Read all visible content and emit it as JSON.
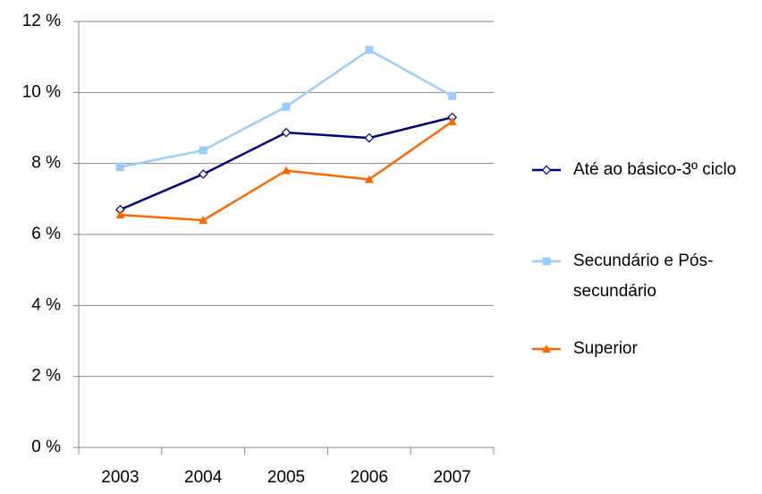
{
  "chart_data": {
    "type": "line",
    "categories": [
      "2003",
      "2004",
      "2005",
      "2006",
      "2007"
    ],
    "series": [
      {
        "name": "Até ao básico-3º ciclo",
        "color": "#000080",
        "marker": "diamond",
        "values": [
          6.7,
          7.7,
          8.87,
          8.72,
          9.3
        ]
      },
      {
        "name": "Secundário e Pós-secundário",
        "color": "#99ccff",
        "marker": "square",
        "values": [
          7.9,
          8.37,
          9.6,
          11.2,
          9.9
        ]
      },
      {
        "name": "Superior",
        "color": "#ff6600",
        "marker": "triangle",
        "values": [
          6.55,
          6.4,
          7.8,
          7.55,
          9.18
        ]
      }
    ],
    "ylim": [
      0,
      12
    ],
    "yticks": [
      {
        "value": 0,
        "label": "0 %"
      },
      {
        "value": 2,
        "label": "2 %"
      },
      {
        "value": 4,
        "label": "4 %"
      },
      {
        "value": 6,
        "label": "6 %"
      },
      {
        "value": 8,
        "label": "8 %"
      },
      {
        "value": 10,
        "label": "10 %"
      },
      {
        "value": 12,
        "label": "12 %"
      }
    ],
    "grid": true,
    "legend": "right"
  }
}
